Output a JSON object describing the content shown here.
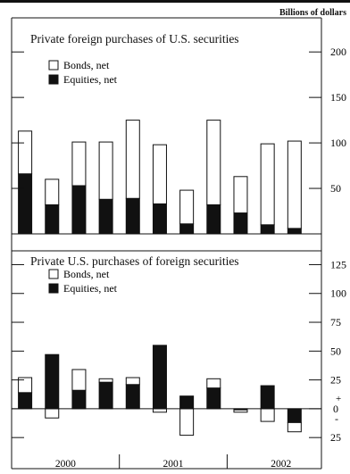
{
  "units_label": "Billions of dollars",
  "chart_data": [
    {
      "type": "bar",
      "title": "Private foreign purchases of U.S. securities",
      "stacked": true,
      "x": [
        1999.75,
        2000.0,
        2000.25,
        2000.5,
        2000.75,
        2001.0,
        2001.25,
        2001.5,
        2001.75,
        2002.0,
        2002.25
      ],
      "series": [
        {
          "name": "Bonds, net",
          "values": [
            47,
            28,
            48,
            63,
            86,
            65,
            37,
            93,
            40,
            89,
            96
          ],
          "color": "#ffffff"
        },
        {
          "name": "Equities, net",
          "values": [
            66,
            32,
            53,
            38,
            39,
            33,
            11,
            32,
            23,
            10,
            6
          ],
          "color": "#111111"
        }
      ],
      "ylim": [
        0,
        210
      ],
      "yticks": [
        50,
        100,
        150,
        200
      ],
      "legend": "top-left"
    },
    {
      "type": "bar",
      "title": "Private U.S. purchases of foreign securities",
      "stacked": true,
      "x": [
        1999.75,
        2000.0,
        2000.25,
        2000.5,
        2000.75,
        2001.0,
        2001.25,
        2001.5,
        2001.75,
        2002.0,
        2002.25
      ],
      "series": [
        {
          "name": "Bonds, net",
          "values": [
            13,
            -8,
            18,
            3,
            6,
            -3,
            -23,
            8,
            -2,
            -11,
            -8
          ],
          "color": "#ffffff"
        },
        {
          "name": "Equities, net",
          "values": [
            14,
            47,
            16,
            23,
            21,
            55,
            11,
            18,
            -1,
            20,
            -12
          ],
          "color": "#111111"
        }
      ],
      "ylim": [
        -45,
        130
      ],
      "yticks": [
        -25,
        0,
        25,
        50,
        75,
        100,
        125
      ],
      "ytick_labels": [
        "25",
        "0",
        "25",
        "50",
        "75",
        "100",
        "125"
      ],
      "sign_marks": [
        "+",
        "-"
      ],
      "xlabels": [
        "2000",
        "2001",
        "2002"
      ],
      "legend": "top-left"
    }
  ]
}
